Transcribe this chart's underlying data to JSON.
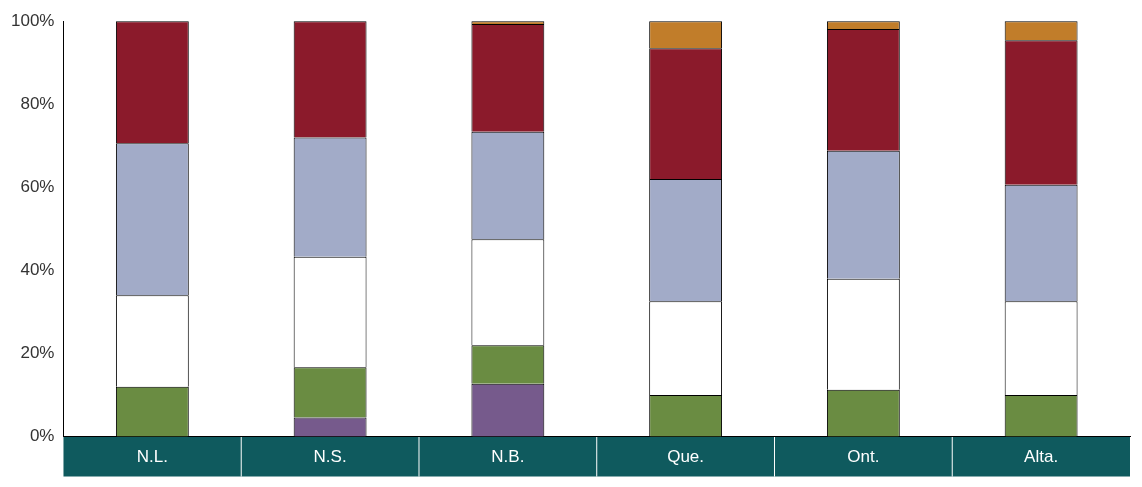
{
  "chart_data": {
    "type": "bar",
    "stacked": true,
    "categories": [
      "N.L.",
      "N.S.",
      "N.B.",
      "Que.",
      "Ont.",
      "Alta."
    ],
    "series": [
      {
        "color": "#765a8c",
        "values": [
          0,
          4.6,
          12.7,
          0,
          0,
          0
        ]
      },
      {
        "color": "#6a8c42",
        "values": [
          12.0,
          12.1,
          9.3,
          10.0,
          11.3,
          10.0
        ]
      },
      {
        "color": "#ffffff",
        "values": [
          22.0,
          26.6,
          25.5,
          22.6,
          26.7,
          22.6
        ]
      },
      {
        "color": "#a2abc8",
        "values": [
          36.6,
          28.7,
          25.9,
          29.4,
          30.8,
          28.0
        ]
      },
      {
        "color": "#8b1a2b",
        "values": [
          29.4,
          28.0,
          25.9,
          31.5,
          29.3,
          34.8
        ]
      },
      {
        "color": "#c17d2a",
        "values": [
          0,
          0,
          0.7,
          6.5,
          1.9,
          4.6
        ]
      }
    ],
    "ylim": [
      0,
      100
    ],
    "yticks": [
      {
        "value": 0,
        "label": "0%"
      },
      {
        "value": 20,
        "label": "20%"
      },
      {
        "value": 40,
        "label": "40%"
      },
      {
        "value": 60,
        "label": "60%"
      },
      {
        "value": 80,
        "label": "80%"
      },
      {
        "value": 100,
        "label": "100%"
      }
    ],
    "grid": false,
    "legend": false
  }
}
